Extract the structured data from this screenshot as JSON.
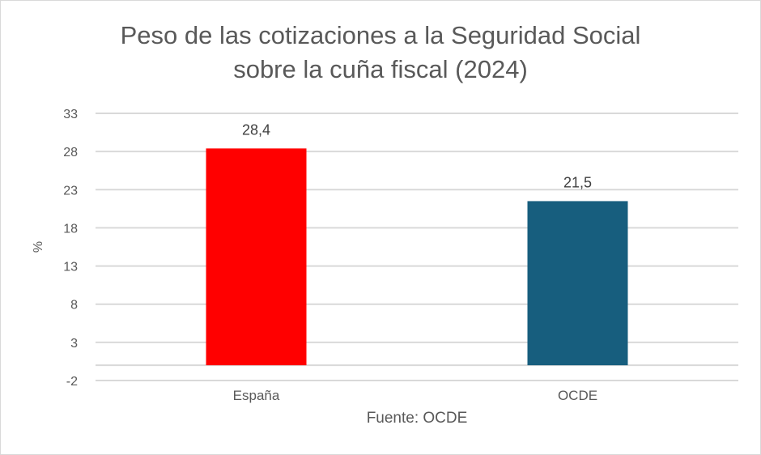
{
  "chart_data": {
    "type": "bar",
    "title_line1": "Peso de las cotizaciones a la Seguridad Social",
    "title_line2": "sobre la cuña fiscal (2024)",
    "ylabel": "%",
    "xlabel": "Fuente: OCDE",
    "categories": [
      "España",
      "OCDE"
    ],
    "values": [
      28.4,
      21.5
    ],
    "data_labels": [
      "28,4",
      "21,5"
    ],
    "colors": [
      "#ff0000",
      "#175e7e"
    ],
    "ylim": [
      -2,
      33
    ],
    "yticks": [
      -2,
      3,
      8,
      13,
      18,
      23,
      28,
      33
    ],
    "grid": true,
    "legend": "none"
  }
}
